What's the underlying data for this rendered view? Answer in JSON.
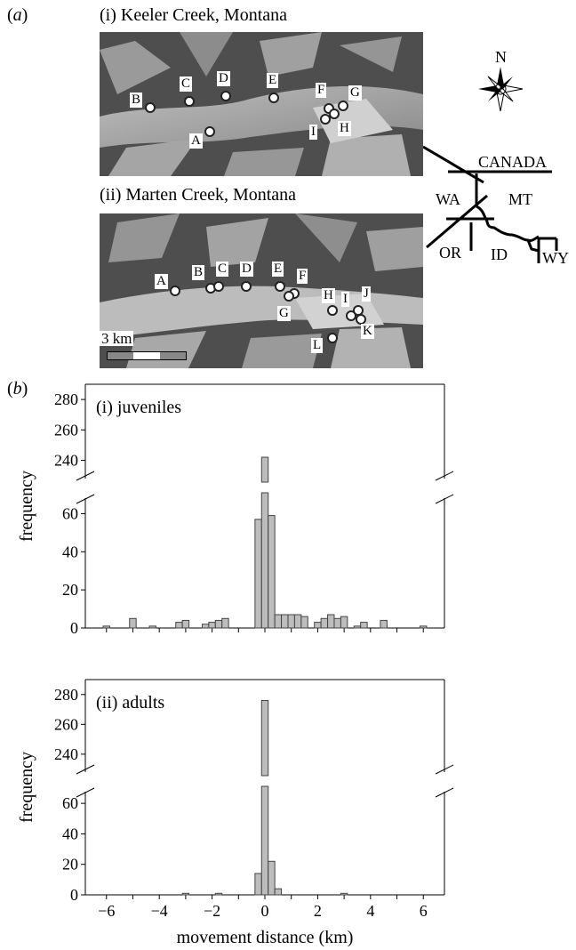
{
  "panel_a": {
    "tag_open": "(",
    "tag_letter": "a",
    "tag_close": ")",
    "keeler_title": "(i) Keeler Creek, Montana",
    "marten_title": "(ii) Marten Creek, Montana",
    "scale_label": "3 km",
    "compass_label": "N",
    "keeler_sites": [
      "B",
      "C",
      "D",
      "E",
      "F",
      "G",
      "A",
      "I",
      "H"
    ],
    "marten_sites": [
      "A",
      "B",
      "C",
      "D",
      "E",
      "F",
      "G",
      "H",
      "I",
      "J",
      "K",
      "L"
    ],
    "map_labels": {
      "canada": "CANADA",
      "wa": "WA",
      "mt": "MT",
      "or": "OR",
      "id": "ID",
      "wy": "WY"
    }
  },
  "panel_b": {
    "tag_open": "(",
    "tag_letter": "b",
    "tag_close": ")"
  },
  "chart_data": [
    {
      "type": "bar",
      "title": "(i) juveniles",
      "xlabel": "movement distance (km)",
      "ylabel": "frequency",
      "xlim": [
        -6.8,
        6.8
      ],
      "lower_ylim": [
        0,
        70
      ],
      "upper_ylim": [
        228,
        290
      ],
      "yticks_lower": [
        0,
        20,
        40,
        60
      ],
      "yticks_upper": [
        240,
        260,
        280
      ],
      "bin_width": 0.25,
      "bins_center": [
        -6.0,
        -5.0,
        -4.25,
        -3.25,
        -3.0,
        -2.25,
        -2.0,
        -1.75,
        -1.5,
        -0.25,
        0.0,
        0.25,
        0.5,
        0.75,
        1.0,
        1.25,
        1.5,
        2.0,
        2.25,
        2.5,
        2.75,
        3.0,
        3.5,
        3.75,
        4.5,
        6.0
      ],
      "values": [
        1,
        5,
        1,
        3,
        4,
        2,
        3,
        4,
        5,
        57,
        242,
        59,
        7,
        7,
        7,
        7,
        6,
        3,
        5,
        7,
        5,
        6,
        1,
        3,
        4,
        1
      ]
    },
    {
      "type": "bar",
      "title": "(ii) adults",
      "xlabel": "movement distance (km)",
      "ylabel": "frequency",
      "xlim": [
        -6.8,
        6.8
      ],
      "lower_ylim": [
        0,
        70
      ],
      "upper_ylim": [
        228,
        290
      ],
      "yticks_lower": [
        0,
        20,
        40,
        60
      ],
      "yticks_upper": [
        240,
        260,
        280
      ],
      "xticks": [
        -6,
        -4,
        -2,
        0,
        2,
        4,
        6
      ],
      "bin_width": 0.25,
      "bins_center": [
        -3.0,
        -1.75,
        -0.25,
        0.0,
        0.25,
        0.5,
        3.0
      ],
      "values": [
        1,
        1,
        14,
        276,
        22,
        4,
        1
      ]
    }
  ]
}
